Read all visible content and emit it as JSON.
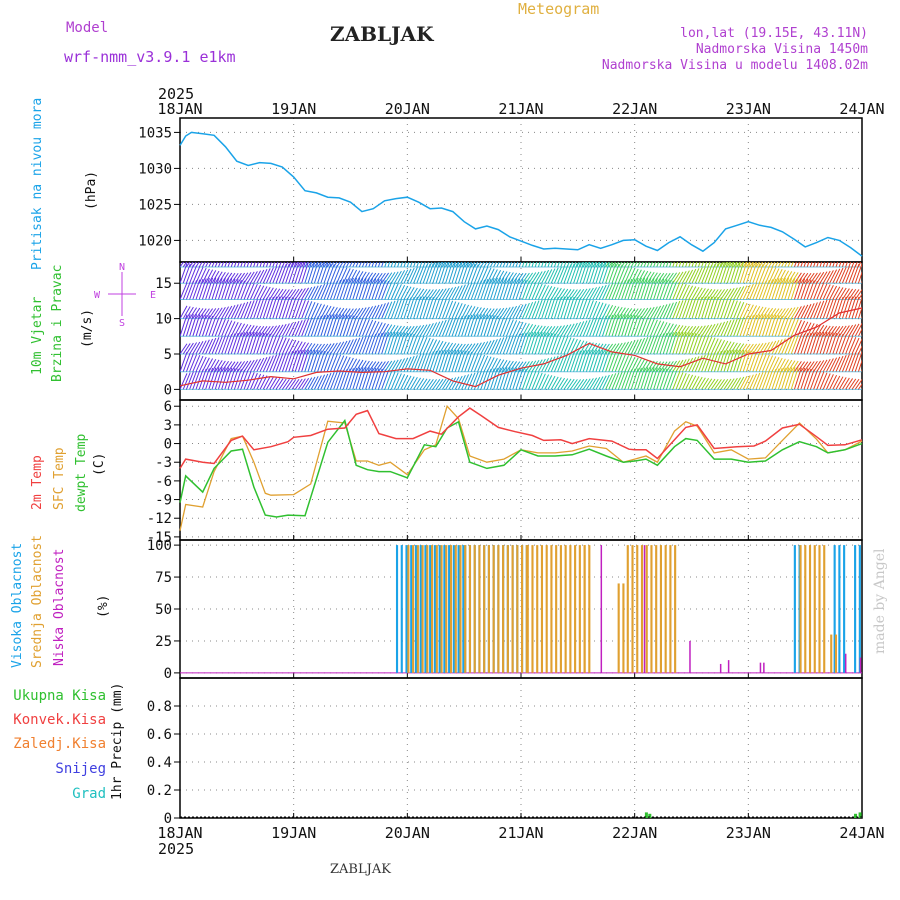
{
  "header": {
    "model_label": "Model",
    "model_version": "wrf-nmm_v3.9.1 e1km",
    "station": "ZABLJAK",
    "title": "Meteogram",
    "location": "lon,lat (19.15E, 43.11N)",
    "elevation": "Nadmorska Visina 1450m",
    "model_elevation": "Nadmorska Visina u modelu 1408.02m",
    "footer_station": "ZABLJAK",
    "watermark": "made by Angel"
  },
  "colors": {
    "pressure": "#1aa3e8",
    "t2m": "#f04040",
    "sfc": "#e0a030",
    "dewpt": "#30c030",
    "high_cloud": "#1aa3e8",
    "mid_cloud": "#e0a030",
    "low_cloud": "#c020c0",
    "total_precip": "#30c030",
    "conv_precip": "#f04040",
    "frz_precip": "#f08030",
    "snow": "#4040e0",
    "hail": "#20c0c0"
  },
  "chart_data": [
    {
      "type": "line",
      "panel": "pressure",
      "ylabel": [
        "Pritisak na nivou mora",
        "(hPa)"
      ],
      "ylim": [
        1017,
        1037
      ],
      "yticks": [
        1020,
        1025,
        1030,
        1035
      ],
      "x_labels": [
        "18JAN",
        "19JAN",
        "20JAN",
        "21JAN",
        "22JAN",
        "23JAN",
        "24JAN"
      ],
      "year": "2025",
      "series": [
        {
          "key": "pressure",
          "x": [
            0,
            0.05,
            0.1,
            0.2,
            0.3,
            0.4,
            0.5,
            0.6,
            0.7,
            0.8,
            0.9,
            1.0,
            1.1,
            1.2,
            1.3,
            1.4,
            1.5,
            1.6,
            1.7,
            1.8,
            1.9,
            2.0,
            2.1,
            2.2,
            2.3,
            2.4,
            2.5,
            2.6,
            2.7,
            2.8,
            2.9,
            3.0,
            3.1,
            3.2,
            3.3,
            3.4,
            3.5,
            3.6,
            3.7,
            3.8,
            3.9,
            4.0,
            4.1,
            4.2,
            4.3,
            4.4,
            4.5,
            4.6,
            4.7,
            4.8,
            4.9,
            5.0,
            5.1,
            5.2,
            5.3,
            5.4,
            5.5,
            5.6,
            5.7,
            5.8,
            5.9,
            6.0
          ],
          "y": [
            1033.2,
            1034.5,
            1035.0,
            1034.8,
            1034.6,
            1033.0,
            1031.0,
            1030.4,
            1030.8,
            1030.7,
            1030.2,
            1028.8,
            1026.9,
            1026.6,
            1026.0,
            1025.9,
            1025.3,
            1024.0,
            1024.4,
            1025.5,
            1025.8,
            1026.0,
            1025.3,
            1024.4,
            1024.5,
            1024.0,
            1022.6,
            1021.6,
            1022.0,
            1021.5,
            1020.5,
            1019.9,
            1019.3,
            1018.8,
            1018.9,
            1018.8,
            1018.7,
            1019.4,
            1018.9,
            1019.4,
            1020.0,
            1020.1,
            1019.2,
            1018.6,
            1019.7,
            1020.5,
            1019.4,
            1018.5,
            1019.7,
            1021.6,
            1022.1,
            1022.6,
            1022.1,
            1021.8,
            1021.2,
            1020.2,
            1019.1,
            1019.7,
            1020.4,
            1020.0,
            1019.0,
            1017.8
          ]
        }
      ]
    },
    {
      "type": "line",
      "panel": "wind",
      "ylabel": [
        "10m Vjetar",
        "Brzina i Pravac",
        "(m/s)"
      ],
      "compass": {
        "north": "N",
        "west": "W",
        "east": "E",
        "south": "S"
      },
      "ylim": [
        -1.5,
        18
      ],
      "yticks": [
        0,
        5,
        10,
        15
      ],
      "series": [
        {
          "key": "wind_speed",
          "x": [
            0,
            0.2,
            0.4,
            0.6,
            0.8,
            1.0,
            1.2,
            1.4,
            1.6,
            1.8,
            2.0,
            2.2,
            2.4,
            2.6,
            2.8,
            3.0,
            3.2,
            3.4,
            3.6,
            3.8,
            4.0,
            4.2,
            4.4,
            4.6,
            4.8,
            5.0,
            5.2,
            5.4,
            5.6,
            5.8,
            6.0
          ],
          "y": [
            0.5,
            1.2,
            1.0,
            1.3,
            1.8,
            1.5,
            2.4,
            2.6,
            2.4,
            2.5,
            2.9,
            2.7,
            1.2,
            0.4,
            2.0,
            3.0,
            3.6,
            4.8,
            6.5,
            5.3,
            4.8,
            3.6,
            3.2,
            4.4,
            3.6,
            5.0,
            5.5,
            7.6,
            8.8,
            10.8,
            11.5
          ]
        }
      ]
    },
    {
      "type": "line",
      "panel": "temperature",
      "ylabel": [
        "2m Temp",
        "SFC Temp",
        "dewpt Temp",
        "(C)"
      ],
      "ylim": [
        -15.5,
        7
      ],
      "yticks": [
        6,
        3,
        0,
        -3,
        -6,
        -9,
        -12,
        -15
      ],
      "series": [
        {
          "key": "t2m",
          "x": [
            0,
            0.05,
            0.2,
            0.3,
            0.45,
            0.55,
            0.65,
            0.8,
            0.95,
            1.0,
            1.15,
            1.3,
            1.45,
            1.55,
            1.65,
            1.75,
            1.9,
            2.05,
            2.2,
            2.3,
            2.45,
            2.55,
            2.65,
            2.8,
            2.95,
            3.1,
            3.2,
            3.35,
            3.45,
            3.6,
            3.8,
            3.95,
            4.0,
            4.1,
            4.2,
            4.35,
            4.45,
            4.55,
            4.7,
            4.9,
            5.05,
            5.15,
            5.3,
            5.45,
            5.6,
            5.7,
            5.85,
            6.0
          ],
          "y": [
            -4.0,
            -2.5,
            -3.0,
            -3.2,
            0.5,
            1.2,
            -1.0,
            -0.5,
            0.3,
            1.0,
            1.3,
            2.3,
            2.5,
            4.7,
            5.3,
            1.6,
            0.8,
            0.8,
            2.0,
            1.5,
            4.3,
            5.7,
            4.5,
            2.6,
            1.9,
            1.3,
            0.5,
            0.6,
            0.0,
            0.8,
            0.4,
            -0.9,
            -1.0,
            -1.0,
            -2.4,
            0.6,
            2.6,
            3.0,
            -0.8,
            -0.5,
            -0.4,
            0.4,
            2.5,
            3.1,
            1.1,
            -0.3,
            -0.2,
            0.6
          ]
        },
        {
          "key": "sfc",
          "x": [
            0,
            0.05,
            0.2,
            0.3,
            0.45,
            0.55,
            0.65,
            0.75,
            0.8,
            1.0,
            1.15,
            1.3,
            1.45,
            1.55,
            1.65,
            1.75,
            1.85,
            2.0,
            2.15,
            2.25,
            2.35,
            2.45,
            2.55,
            2.7,
            2.85,
            3.0,
            3.15,
            3.3,
            3.45,
            3.6,
            3.75,
            3.9,
            4.0,
            4.1,
            4.2,
            4.35,
            4.45,
            4.55,
            4.7,
            4.85,
            5.0,
            5.15,
            5.3,
            5.45,
            5.6,
            5.7,
            5.85,
            6.0
          ],
          "y": [
            -14.0,
            -9.8,
            -10.2,
            -4.5,
            0.8,
            1.2,
            -3.0,
            -8.0,
            -8.3,
            -8.2,
            -6.5,
            3.6,
            3.3,
            -2.8,
            -2.8,
            -3.5,
            -3.0,
            -5.0,
            -1.0,
            -0.2,
            6.0,
            4.0,
            -2.0,
            -3.0,
            -2.5,
            -1.0,
            -1.5,
            -1.5,
            -1.2,
            -0.4,
            -0.8,
            -3.0,
            -2.5,
            -2.0,
            -3.0,
            2.0,
            3.5,
            2.8,
            -1.5,
            -1.0,
            -2.5,
            -2.3,
            0.5,
            3.3,
            0.7,
            -1.5,
            -1.0,
            0.4
          ]
        },
        {
          "key": "dewpt",
          "x": [
            0,
            0.05,
            0.2,
            0.3,
            0.45,
            0.55,
            0.65,
            0.75,
            0.85,
            0.95,
            1.1,
            1.3,
            1.45,
            1.55,
            1.65,
            1.75,
            1.85,
            2.0,
            2.15,
            2.25,
            2.35,
            2.45,
            2.55,
            2.7,
            2.85,
            3.0,
            3.15,
            3.3,
            3.45,
            3.6,
            3.75,
            3.9,
            4.0,
            4.1,
            4.2,
            4.35,
            4.45,
            4.55,
            4.7,
            4.85,
            5.0,
            5.15,
            5.3,
            5.45,
            5.6,
            5.7,
            5.85,
            6.0
          ],
          "y": [
            -9.5,
            -5.2,
            -7.8,
            -4.0,
            -1.2,
            -0.9,
            -7.0,
            -11.5,
            -11.8,
            -11.5,
            -11.6,
            0.2,
            3.7,
            -3.5,
            -4.2,
            -4.5,
            -4.5,
            -5.5,
            -0.2,
            -0.5,
            2.5,
            3.5,
            -3.0,
            -4.0,
            -3.5,
            -1.0,
            -2.0,
            -2.0,
            -1.8,
            -0.9,
            -2.0,
            -3.0,
            -2.8,
            -2.5,
            -3.5,
            -0.5,
            0.8,
            0.5,
            -2.5,
            -2.5,
            -3.0,
            -2.8,
            -1.0,
            0.3,
            -0.5,
            -1.5,
            -1.0,
            0.0
          ]
        }
      ]
    },
    {
      "type": "bar",
      "panel": "cloud",
      "ylabel": [
        "Visoka Oblacnost",
        "Srednja Oblacnost",
        "Niska Oblacnost",
        "(%)"
      ],
      "ylim": [
        -4,
        104
      ],
      "yticks": [
        0,
        25,
        50,
        75,
        100
      ],
      "series": [
        {
          "key": "high_cloud",
          "segments": [
            [
              1.9,
              2.5,
              100
            ],
            [
              2.5,
              3.05,
              100
            ],
            [
              5.4,
              5.47,
              100
            ],
            [
              5.75,
              5.85,
              100
            ],
            [
              5.93,
              6.0,
              100
            ]
          ]
        },
        {
          "key": "mid_cloud",
          "segments": [
            [
              2.0,
              3.05,
              100
            ],
            [
              3.05,
              3.55,
              100
            ],
            [
              3.55,
              3.62,
              100
            ],
            [
              3.85,
              3.9,
              70
            ],
            [
              3.93,
              4.35,
              100
            ],
            [
              5.45,
              5.7,
              100
            ],
            [
              5.72,
              5.78,
              30
            ]
          ]
        },
        {
          "key": "low_cloud",
          "singles": [
            [
              3.7,
              100
            ],
            [
              4.08,
              100
            ],
            [
              4.48,
              25
            ],
            [
              4.75,
              7
            ],
            [
              4.82,
              10
            ],
            [
              5.1,
              8
            ],
            [
              5.13,
              8
            ],
            [
              5.85,
              15
            ],
            [
              5.98,
              12
            ]
          ]
        }
      ]
    },
    {
      "type": "bar",
      "panel": "precip",
      "ylabel": [
        "1hr Precip (mm)"
      ],
      "ylim": [
        0,
        1.0
      ],
      "yticks": [
        0,
        0.2,
        0.4,
        0.6,
        0.8
      ],
      "legend": [
        "Ukupna Kisa",
        "Konvek.Kisa",
        "Zaledj.Kisa",
        "Snijeg",
        "Grad"
      ],
      "series": [
        {
          "key": "total_precip",
          "bars": [
            [
              4.09,
              0.04
            ],
            [
              4.12,
              0.03
            ],
            [
              5.93,
              0.03
            ],
            [
              5.97,
              0.04
            ]
          ]
        }
      ]
    }
  ]
}
